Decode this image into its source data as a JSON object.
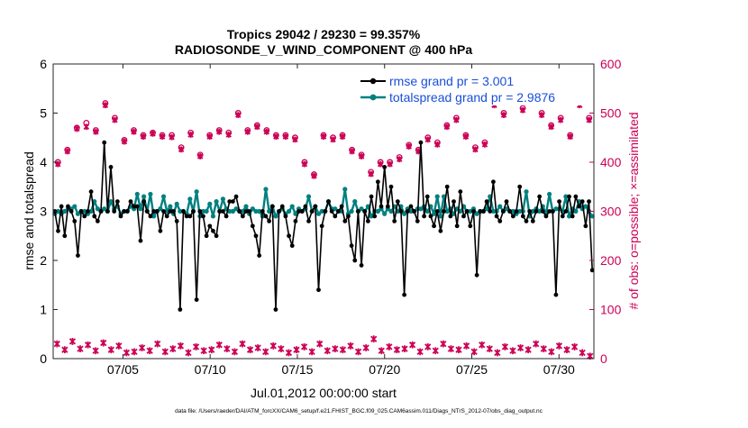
{
  "chart_data": {
    "type": "line",
    "title": "Tropics 29042 / 29230 = 99.357%",
    "subtitle": "RADIOSONDE_V_WIND_COMPONENT @ 400 hPa",
    "xlabel": "Jul.01,2012 00:00:00 start",
    "ylabel_left": "rmse and totalspread",
    "ylabel_right": "# of obs: o=possible; ×=assimilated",
    "footer": "data file: /Users/raeder/DAI/ATM_forcXX/CAM6_setup/f.e21.FHIST_BGC.f09_025.CAM6assim.011/Diags_NTrS_2012-07/obs_diag_output.nc",
    "xlim": [
      1,
      32
    ],
    "ylim_left": [
      0,
      6
    ],
    "ylim_right": [
      0,
      600
    ],
    "x_ticks": [
      5,
      10,
      15,
      20,
      25,
      30
    ],
    "x_tick_labels": [
      "07/05",
      "07/10",
      "07/15",
      "07/20",
      "07/25",
      "07/30"
    ],
    "y_ticks_left": [
      "0",
      "1",
      "2",
      "3",
      "4",
      "5",
      "6"
    ],
    "y_ticks_right": [
      "0",
      "100",
      "200",
      "300",
      "400",
      "500",
      "600"
    ],
    "colors": {
      "rmse": "#000000",
      "totalspread": "#008080",
      "obs": "#cc0055",
      "legend_text": "#1a4ed8"
    },
    "legend": [
      {
        "name": "rmse grand pr = 3.001"
      },
      {
        "name": "totalspread grand pr = 2.9876"
      }
    ],
    "series": [
      {
        "name": "rmse",
        "axis": "left",
        "values": [
          3.0,
          2.6,
          3.1,
          2.5,
          3.1,
          3.0,
          2.8,
          2.1,
          3.0,
          2.9,
          3.0,
          3.4,
          2.9,
          2.8,
          3.0,
          4.4,
          3.0,
          3.9,
          3.0,
          3.2,
          2.9,
          3.0,
          3.0,
          3.2,
          3.1,
          3.1,
          2.4,
          3.2,
          3.0,
          2.9,
          3.0,
          3.0,
          2.6,
          3.0,
          2.9,
          3.0,
          3.0,
          2.8,
          1.0,
          3.0,
          2.9,
          2.9,
          3.0,
          1.2,
          3.0,
          2.9,
          2.5,
          2.7,
          2.6,
          2.5,
          3.0,
          3.0,
          2.9,
          3.2,
          3.2,
          3.3,
          3.0,
          2.9,
          3.0,
          3.0,
          2.7,
          2.5,
          2.1,
          3.0,
          2.9,
          2.8,
          3.1,
          1.0,
          3.0,
          3.1,
          2.9,
          2.5,
          2.3,
          2.8,
          3.0,
          3.0,
          3.1,
          2.8,
          3.0,
          3.1,
          1.4,
          2.7,
          3.0,
          3.2,
          3.0,
          2.9,
          3.0,
          3.1,
          2.8,
          2.9,
          2.3,
          2.0,
          3.0,
          1.9,
          3.0,
          2.8,
          3.3,
          2.9,
          3.6,
          3.1,
          3.9,
          3.1,
          3.5,
          2.8,
          3.2,
          3.0,
          1.3,
          3.0,
          3.1,
          3.0,
          2.8,
          4.4,
          2.9,
          3.3,
          2.9,
          2.7,
          3.0,
          2.6,
          3.0,
          3.5,
          2.9,
          3.2,
          2.7,
          3.4,
          2.9,
          3.0,
          2.7,
          3.0,
          1.7,
          3.0,
          3.0,
          3.2,
          3.0,
          3.6,
          2.9,
          2.8,
          3.0,
          3.2,
          3.0,
          2.9,
          3.0,
          3.5,
          2.9,
          2.8,
          3.0,
          2.8,
          3.0,
          3.3,
          3.0,
          2.9,
          3.0,
          3.0,
          1.3,
          3.2,
          2.9,
          3.0,
          3.3,
          2.9,
          3.3,
          3.1,
          3.2,
          2.7,
          3.2,
          1.8
        ]
      },
      {
        "name": "totalspread",
        "axis": "left",
        "values": [
          2.95,
          3.0,
          2.95,
          3.0,
          3.05,
          3.05,
          3.1,
          2.95,
          3.0,
          3.0,
          2.95,
          3.0,
          3.2,
          3.05,
          3.0,
          3.05,
          3.0,
          3.2,
          3.05,
          3.1,
          2.95,
          3.0,
          3.0,
          3.1,
          3.05,
          3.35,
          3.05,
          3.3,
          3.0,
          3.35,
          2.9,
          3.0,
          3.05,
          3.3,
          3.0,
          3.1,
          2.95,
          3.15,
          3.0,
          3.0,
          2.95,
          3.25,
          3.0,
          3.4,
          2.9,
          3.0,
          3.0,
          3.15,
          2.9,
          3.2,
          3.0,
          3.25,
          3.05,
          3.0,
          3.0,
          3.05,
          3.0,
          3.0,
          3.1,
          2.95,
          3.05,
          3.0,
          3.0,
          2.9,
          3.45,
          3.0,
          3.1,
          2.9,
          3.0,
          3.05,
          2.95,
          3.0,
          3.1,
          2.95,
          3.05,
          3.0,
          3.05,
          3.3,
          3.0,
          3.1,
          2.95,
          3.0,
          3.0,
          3.2,
          3.05,
          3.05,
          3.0,
          3.0,
          3.45,
          2.95,
          3.0,
          3.2,
          3.0,
          3.05,
          3.0,
          3.1,
          2.9,
          3.0,
          3.0,
          3.05,
          2.95,
          3.05,
          3.0,
          3.1,
          3.0,
          3.1,
          2.95,
          3.05,
          3.0,
          3.0,
          3.05,
          3.05,
          3.1,
          3.0,
          3.1,
          2.95,
          3.3,
          2.9,
          3.3,
          3.0,
          3.05,
          2.95,
          3.05,
          3.0,
          3.1,
          3.0,
          3.0,
          3.05,
          2.95,
          3.0,
          3.0,
          3.05,
          3.3,
          3.0,
          3.0,
          3.1,
          3.0,
          3.05,
          3.0,
          3.0,
          2.95,
          3.0,
          3.0,
          3.4,
          2.9,
          3.0,
          3.05,
          3.0,
          3.1,
          2.95,
          3.35,
          3.0,
          3.05,
          3.05,
          3.0,
          3.3,
          2.9,
          3.05,
          3.0,
          3.2,
          3.05,
          3.1,
          3.0,
          2.9
        ]
      },
      {
        "name": "obs possible (upper)",
        "axis": "right",
        "values": [
          400,
          425,
          470,
          480,
          465,
          520,
          490,
          445,
          465,
          455,
          460,
          455,
          455,
          430,
          460,
          415,
          455,
          465,
          460,
          500,
          465,
          475,
          465,
          455,
          455,
          450,
          400,
          375,
          455,
          450,
          455,
          425,
          415,
          380,
          400,
          400,
          410,
          435,
          425,
          450,
          440,
          475,
          490,
          455,
          430,
          440,
          520,
          500,
          525,
          510,
          525,
          500,
          475,
          490,
          455,
          520,
          490
        ]
      },
      {
        "name": "obs assimilated (upper)",
        "axis": "right",
        "values": [
          396,
          422,
          468,
          472,
          462,
          516,
          486,
          442,
          462,
          452,
          458,
          452,
          451,
          426,
          456,
          412,
          452,
          462,
          456,
          496,
          462,
          472,
          462,
          452,
          452,
          446,
          396,
          372,
          452,
          446,
          452,
          422,
          412,
          376,
          396,
          396,
          406,
          432,
          422,
          446,
          436,
          472,
          486,
          452,
          426,
          436,
          516,
          496,
          522,
          506,
          522,
          496,
          472,
          486,
          452,
          516,
          486
        ]
      },
      {
        "name": "obs possible (lower)",
        "axis": "right",
        "values": [
          30,
          18,
          35,
          20,
          28,
          16,
          32,
          18,
          26,
          12,
          14,
          22,
          16,
          30,
          14,
          20,
          26,
          12,
          24,
          16,
          18,
          28,
          20,
          14,
          30,
          18,
          22,
          14,
          26,
          20,
          12,
          18,
          24,
          14,
          30,
          16,
          20,
          18,
          26,
          14,
          22,
          40,
          16,
          24,
          18,
          20,
          28,
          14,
          24,
          16,
          30,
          20,
          18,
          26,
          14,
          28,
          20,
          12,
          24,
          16,
          22,
          18,
          30,
          20,
          14,
          26,
          18,
          24,
          12,
          5
        ]
      }
    ]
  }
}
